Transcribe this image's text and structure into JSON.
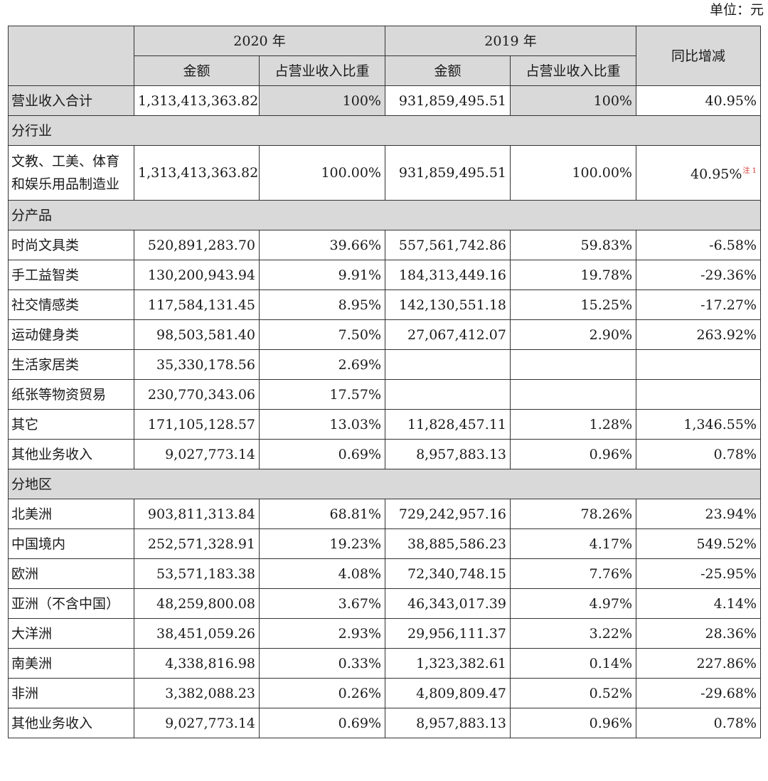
{
  "unit_label": "单位：元",
  "header": {
    "year_2020": "2020 年",
    "year_2019": "2019 年",
    "amount": "金额",
    "ratio": "占营业收入比重",
    "yoy": "同比增减"
  },
  "total": {
    "label": "营业收入合计",
    "amt2020": "1,313,413,363.82",
    "pct2020": "100%",
    "amt2019": "931,859,495.51",
    "pct2019": "100%",
    "yoy": "40.95%"
  },
  "sections": {
    "industry": "分行业",
    "product": "分产品",
    "region": "分地区"
  },
  "industry_row": {
    "label": "文教、工美、体育和娱乐用品制造业",
    "amt2020": "1,313,413,363.82",
    "pct2020": "100.00%",
    "amt2019": "931,859,495.51",
    "pct2019": "100.00%",
    "yoy": "40.95%",
    "note": "注 1"
  },
  "product_rows": [
    {
      "label": "时尚文具类",
      "amt2020": "520,891,283.70",
      "pct2020": "39.66%",
      "amt2019": "557,561,742.86",
      "pct2019": "59.83%",
      "yoy": "-6.58%"
    },
    {
      "label": "手工益智类",
      "amt2020": "130,200,943.94",
      "pct2020": "9.91%",
      "amt2019": "184,313,449.16",
      "pct2019": "19.78%",
      "yoy": "-29.36%"
    },
    {
      "label": "社交情感类",
      "amt2020": "117,584,131.45",
      "pct2020": "8.95%",
      "amt2019": "142,130,551.18",
      "pct2019": "15.25%",
      "yoy": "-17.27%"
    },
    {
      "label": "运动健身类",
      "amt2020": "98,503,581.40",
      "pct2020": "7.50%",
      "amt2019": "27,067,412.07",
      "pct2019": "2.90%",
      "yoy": "263.92%"
    },
    {
      "label": "生活家居类",
      "amt2020": "35,330,178.56",
      "pct2020": "2.69%",
      "amt2019": "",
      "pct2019": "",
      "yoy": ""
    },
    {
      "label": "纸张等物资贸易",
      "amt2020": "230,770,343.06",
      "pct2020": "17.57%",
      "amt2019": "",
      "pct2019": "",
      "yoy": ""
    },
    {
      "label": "其它",
      "amt2020": "171,105,128.57",
      "pct2020": "13.03%",
      "amt2019": "11,828,457.11",
      "pct2019": "1.28%",
      "yoy": "1,346.55%"
    },
    {
      "label": "其他业务收入",
      "amt2020": "9,027,773.14",
      "pct2020": "0.69%",
      "amt2019": "8,957,883.13",
      "pct2019": "0.96%",
      "yoy": "0.78%"
    }
  ],
  "region_rows": [
    {
      "label": "北美洲",
      "amt2020": "903,811,313.84",
      "pct2020": "68.81%",
      "amt2019": "729,242,957.16",
      "pct2019": "78.26%",
      "yoy": "23.94%"
    },
    {
      "label": "中国境内",
      "amt2020": "252,571,328.91",
      "pct2020": "19.23%",
      "amt2019": "38,885,586.23",
      "pct2019": "4.17%",
      "yoy": "549.52%"
    },
    {
      "label": "欧洲",
      "amt2020": "53,571,183.38",
      "pct2020": "4.08%",
      "amt2019": "72,340,748.15",
      "pct2019": "7.76%",
      "yoy": "-25.95%"
    },
    {
      "label": "亚洲（不含中国）",
      "amt2020": "48,259,800.08",
      "pct2020": "3.67%",
      "amt2019": "46,343,017.39",
      "pct2019": "4.97%",
      "yoy": "4.14%"
    },
    {
      "label": "大洋洲",
      "amt2020": "38,451,059.26",
      "pct2020": "2.93%",
      "amt2019": "29,956,111.37",
      "pct2019": "3.22%",
      "yoy": "28.36%"
    },
    {
      "label": "南美洲",
      "amt2020": "4,338,816.98",
      "pct2020": "0.33%",
      "amt2019": "1,323,382.61",
      "pct2019": "0.14%",
      "yoy": "227.86%"
    },
    {
      "label": "非洲",
      "amt2020": "3,382,088.23",
      "pct2020": "0.26%",
      "amt2019": "4,809,809.47",
      "pct2019": "0.52%",
      "yoy": "-29.68%"
    },
    {
      "label": "其他业务收入",
      "amt2020": "9,027,773.14",
      "pct2020": "0.69%",
      "amt2019": "8,957,883.13",
      "pct2019": "0.96%",
      "yoy": "0.78%"
    }
  ]
}
